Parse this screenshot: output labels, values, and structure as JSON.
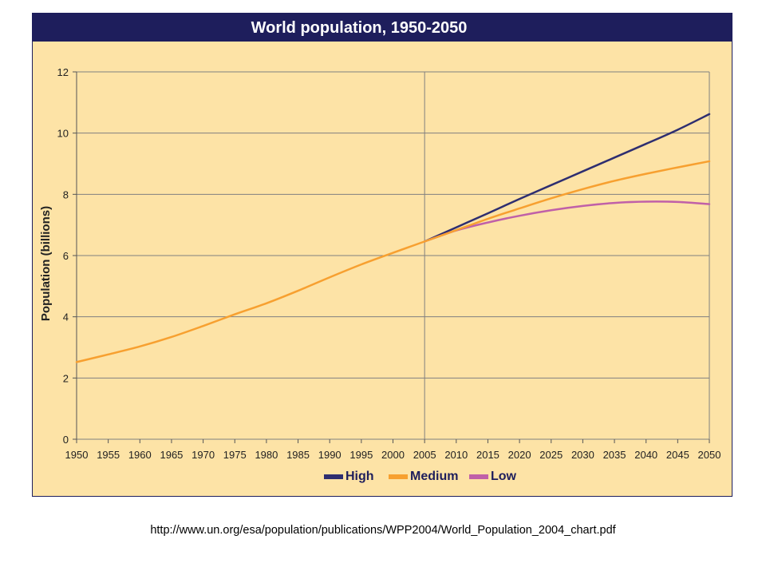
{
  "chart_data": {
    "type": "line",
    "title": "World population, 1950-2050",
    "ylabel": "Population (billions)",
    "xlabel": "",
    "xlim": [
      1950,
      2050
    ],
    "ylim": [
      0,
      12
    ],
    "x_ticks": [
      "1950",
      "1955",
      "1960",
      "1965",
      "1970",
      "1975",
      "1980",
      "1985",
      "1990",
      "1995",
      "2000",
      "2005",
      "2010",
      "2015",
      "2020",
      "2025",
      "2030",
      "2035",
      "2040",
      "2045",
      "2050"
    ],
    "y_ticks": [
      "0",
      "2",
      "4",
      "6",
      "8",
      "10",
      "12"
    ],
    "grid": true,
    "divider_year": 2005,
    "legend_position": "bottom-right",
    "series": [
      {
        "name": "Medium",
        "color": "#f7a030",
        "x": [
          1950,
          1955,
          1960,
          1965,
          1970,
          1975,
          1980,
          1985,
          1990,
          1995,
          2000,
          2005,
          2010,
          2015,
          2020,
          2025,
          2030,
          2035,
          2040,
          2045,
          2050
        ],
        "y": [
          2.52,
          2.77,
          3.03,
          3.34,
          3.7,
          4.08,
          4.44,
          4.85,
          5.29,
          5.71,
          6.09,
          6.46,
          6.83,
          7.2,
          7.54,
          7.87,
          8.17,
          8.44,
          8.67,
          8.88,
          9.08
        ]
      },
      {
        "name": "High",
        "color": "#2e2e70",
        "x": [
          2005,
          2010,
          2015,
          2020,
          2025,
          2030,
          2035,
          2040,
          2045,
          2050
        ],
        "y": [
          6.46,
          6.92,
          7.38,
          7.85,
          8.3,
          8.75,
          9.2,
          9.65,
          10.11,
          10.62
        ]
      },
      {
        "name": "Low",
        "color": "#c060a8",
        "x": [
          2005,
          2010,
          2015,
          2020,
          2025,
          2030,
          2035,
          2040,
          2045,
          2050
        ],
        "y": [
          6.46,
          6.82,
          7.08,
          7.3,
          7.48,
          7.62,
          7.72,
          7.76,
          7.75,
          7.68
        ]
      }
    ],
    "legend_order": [
      "High",
      "Medium",
      "Low"
    ]
  },
  "colors": {
    "plot_background": "#fde3a6",
    "title_bar": "#1e1e5c",
    "title_text": "#ffffff",
    "grid": "#808080"
  },
  "source_url": "http://www.un.org/esa/population/publications/WPP2004/World_Population_2004_chart.pdf"
}
